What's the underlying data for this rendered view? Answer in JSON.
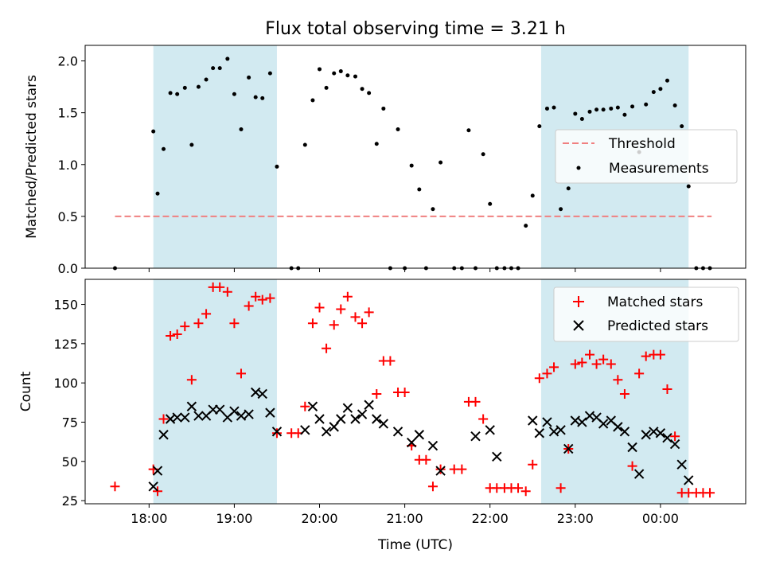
{
  "chart_data": [
    {
      "type": "scatter",
      "title": "Flux total observing time = 3.21 h",
      "xlabel": "",
      "ylabel": "Matched/Predicted stars",
      "xlim": [
        17.25,
        25.0
      ],
      "ylim": [
        0.0,
        2.15
      ],
      "xticks": [
        18,
        19,
        20,
        21,
        22,
        23,
        24
      ],
      "yticks": [
        0.0,
        0.5,
        1.0,
        1.5,
        2.0
      ],
      "ytick_labels": [
        "0.0",
        "0.5",
        "1.0",
        "1.5",
        "2.0"
      ],
      "shaded_spans": [
        [
          18.05,
          19.5
        ],
        [
          22.6,
          24.33
        ]
      ],
      "shade_color": "#add8e6",
      "legend": {
        "position": "center-right",
        "entries": [
          "Threshold",
          "Measurements"
        ]
      },
      "series": [
        {
          "name": "Threshold",
          "kind": "dashed-line",
          "color": "#f08080",
          "x": [
            17.6,
            24.6
          ],
          "y": [
            0.5,
            0.5
          ]
        },
        {
          "name": "Measurements",
          "kind": "dots",
          "color": "#000000",
          "x": [
            17.6,
            18.05,
            18.1,
            18.17,
            18.25,
            18.33,
            18.42,
            18.5,
            18.58,
            18.67,
            18.75,
            18.83,
            18.92,
            19.0,
            19.08,
            19.17,
            19.25,
            19.33,
            19.42,
            19.5,
            19.67,
            19.75,
            19.83,
            19.92,
            20.0,
            20.08,
            20.17,
            20.25,
            20.33,
            20.42,
            20.5,
            20.58,
            20.67,
            20.75,
            20.83,
            20.92,
            21.0,
            21.08,
            21.17,
            21.25,
            21.33,
            21.42,
            21.58,
            21.67,
            21.75,
            21.83,
            21.92,
            22.0,
            22.08,
            22.17,
            22.25,
            22.33,
            22.42,
            22.5,
            22.58,
            22.67,
            22.75,
            22.83,
            22.92,
            23.0,
            23.08,
            23.17,
            23.25,
            23.33,
            23.42,
            23.5,
            23.58,
            23.67,
            23.75,
            23.83,
            23.92,
            24.0,
            24.08,
            24.17,
            24.25,
            24.33,
            24.42,
            24.5,
            24.58
          ],
          "y": [
            0.0,
            1.32,
            0.72,
            1.15,
            1.69,
            1.68,
            1.74,
            1.19,
            1.75,
            1.82,
            1.93,
            1.93,
            2.02,
            1.68,
            1.34,
            1.84,
            1.65,
            1.64,
            1.88,
            0.98,
            0.0,
            0.0,
            1.19,
            1.62,
            1.92,
            1.74,
            1.88,
            1.9,
            1.86,
            1.85,
            1.73,
            1.69,
            1.2,
            1.54,
            0.0,
            1.34,
            0.0,
            0.99,
            0.76,
            0.0,
            0.57,
            1.02,
            0.0,
            0.0,
            1.33,
            0.0,
            1.1,
            0.62,
            0.0,
            0.0,
            0.0,
            0.0,
            0.41,
            0.7,
            1.37,
            1.54,
            1.55,
            0.57,
            0.77,
            1.49,
            1.44,
            1.51,
            1.53,
            1.53,
            1.54,
            1.55,
            1.48,
            1.56,
            1.12,
            1.58,
            1.7,
            1.73,
            1.81,
            1.57,
            1.37,
            0.79,
            0.0,
            0.0,
            0.0
          ]
        }
      ]
    },
    {
      "type": "scatter",
      "title": "",
      "xlabel": "Time (UTC)",
      "ylabel": "Count",
      "xlim": [
        17.25,
        25.0
      ],
      "ylim": [
        23.0,
        166.0
      ],
      "xticks": [
        18,
        19,
        20,
        21,
        22,
        23,
        24
      ],
      "xtick_labels": [
        "18:00",
        "19:00",
        "20:00",
        "21:00",
        "22:00",
        "23:00",
        "00:00"
      ],
      "yticks": [
        25,
        50,
        75,
        100,
        125,
        150
      ],
      "ytick_labels": [
        "25",
        "50",
        "75",
        "100",
        "125",
        "150"
      ],
      "shaded_spans": [
        [
          18.05,
          19.5
        ],
        [
          22.6,
          24.33
        ]
      ],
      "shade_color": "#add8e6",
      "legend": {
        "position": "top-right",
        "entries": [
          "Matched stars",
          "Predicted stars"
        ]
      },
      "series": [
        {
          "name": "Matched stars",
          "kind": "plus",
          "color": "#ff0000",
          "x": [
            17.6,
            18.05,
            18.1,
            18.17,
            18.25,
            18.33,
            18.42,
            18.5,
            18.58,
            18.67,
            18.75,
            18.83,
            18.92,
            19.0,
            19.08,
            19.17,
            19.25,
            19.33,
            19.42,
            19.5,
            19.67,
            19.75,
            19.83,
            19.92,
            20.0,
            20.08,
            20.17,
            20.25,
            20.33,
            20.42,
            20.5,
            20.58,
            20.67,
            20.75,
            20.83,
            20.92,
            21.0,
            21.08,
            21.17,
            21.25,
            21.33,
            21.42,
            21.58,
            21.67,
            21.75,
            21.83,
            21.92,
            22.0,
            22.08,
            22.17,
            22.25,
            22.33,
            22.42,
            22.5,
            22.58,
            22.67,
            22.75,
            22.83,
            22.92,
            23.0,
            23.08,
            23.17,
            23.25,
            23.33,
            23.42,
            23.5,
            23.58,
            23.67,
            23.75,
            23.83,
            23.92,
            24.0,
            24.08,
            24.17,
            24.25,
            24.33,
            24.42,
            24.5,
            24.58
          ],
          "y": [
            34,
            45,
            31,
            77,
            130,
            131,
            136,
            102,
            138,
            144,
            161,
            161,
            158,
            138,
            106,
            149,
            155,
            153,
            154,
            68,
            68,
            68,
            85,
            138,
            148,
            122,
            137,
            147,
            155,
            142,
            138,
            145,
            93,
            114,
            114,
            94,
            94,
            60,
            51,
            51,
            34,
            45,
            45,
            45,
            88,
            88,
            77,
            33,
            33,
            33,
            33,
            33,
            31,
            48,
            103,
            106,
            110,
            33,
            58,
            112,
            113,
            118,
            112,
            115,
            112,
            102,
            93,
            47,
            106,
            117,
            118,
            118,
            96,
            66,
            30,
            30,
            30,
            30,
            30
          ]
        },
        {
          "name": "Predicted stars",
          "kind": "cross",
          "color": "#000000",
          "x": [
            18.05,
            18.1,
            18.17,
            18.25,
            18.33,
            18.42,
            18.5,
            18.58,
            18.67,
            18.75,
            18.83,
            18.92,
            19.0,
            19.08,
            19.17,
            19.25,
            19.33,
            19.42,
            19.5,
            19.83,
            19.92,
            20.0,
            20.08,
            20.17,
            20.25,
            20.33,
            20.42,
            20.5,
            20.58,
            20.67,
            20.75,
            20.92,
            21.08,
            21.17,
            21.33,
            21.42,
            21.83,
            22.0,
            22.08,
            22.5,
            22.58,
            22.67,
            22.75,
            22.83,
            22.92,
            23.0,
            23.08,
            23.17,
            23.25,
            23.33,
            23.42,
            23.5,
            23.58,
            23.67,
            23.75,
            23.83,
            23.92,
            24.0,
            24.08,
            24.17,
            24.25,
            24.33
          ],
          "y": [
            34,
            44,
            67,
            77,
            78,
            78,
            85,
            79,
            79,
            83,
            83,
            78,
            82,
            79,
            80,
            94,
            93,
            81,
            69,
            70,
            85,
            77,
            69,
            72,
            77,
            84,
            77,
            80,
            86,
            77,
            74,
            69,
            62,
            67,
            60,
            44,
            66,
            70,
            53,
            76,
            68,
            75,
            69,
            70,
            58,
            76,
            75,
            79,
            78,
            74,
            76,
            72,
            69,
            59,
            42,
            67,
            69,
            68,
            65,
            61,
            48,
            38
          ]
        }
      ]
    }
  ]
}
